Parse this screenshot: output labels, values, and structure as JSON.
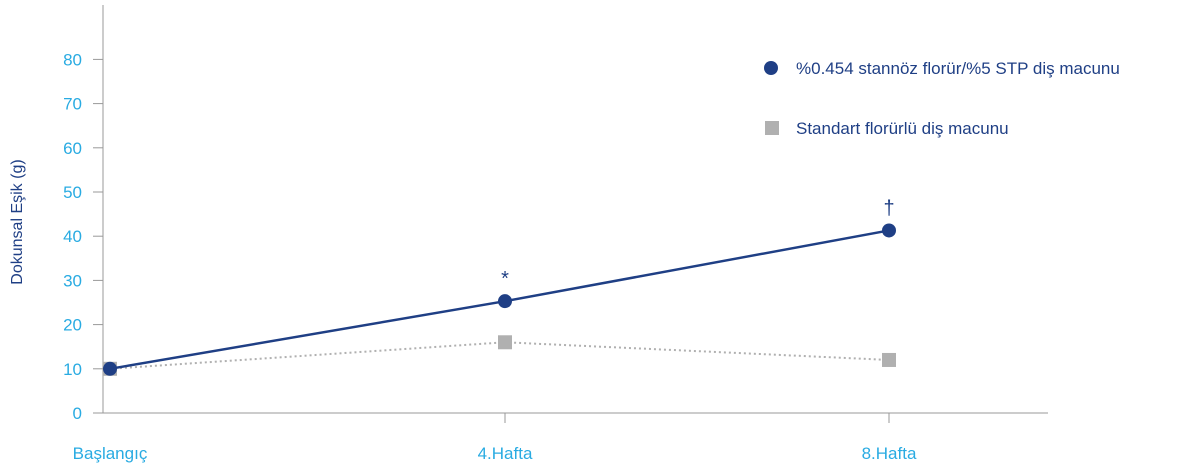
{
  "chart_data": {
    "type": "line",
    "categories": [
      "Başlangıç",
      "4.Hafta",
      "8.Hafta"
    ],
    "ylabel": "Dokunsal Eşik (g)",
    "xlabel": "",
    "title": "",
    "ylim": [
      0,
      80
    ],
    "yticks": [
      0,
      10,
      20,
      30,
      40,
      50,
      60,
      70,
      80
    ],
    "grid": false,
    "legend_position": "top-right",
    "series": [
      {
        "name": "%0.454 stannöz florür/%5 STP diş macunu",
        "values": [
          10,
          25.3,
          41.3
        ],
        "color": "#1f3f85",
        "marker": "circle",
        "line_style": "solid",
        "annotations": [
          "",
          "*",
          "†"
        ]
      },
      {
        "name": "Standart florürlü diş macunu",
        "values": [
          10,
          16,
          12
        ],
        "color": "#b0b0b0",
        "marker": "square",
        "line_style": "dotted",
        "annotations": [
          "",
          "",
          ""
        ]
      }
    ],
    "colors": {
      "tick_label": "#29abe2",
      "axis_title": "#1f3f85",
      "axis_line": "#999999"
    }
  }
}
